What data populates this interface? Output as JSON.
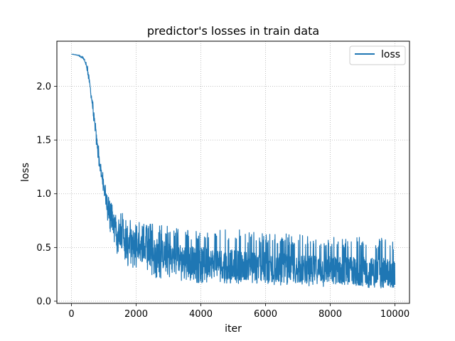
{
  "chart_data": {
    "type": "line",
    "title": "predictor's losses in train data",
    "xlabel": "iter",
    "ylabel": "loss",
    "xlim": [
      -450,
      10450
    ],
    "ylim": [
      -0.02,
      2.42
    ],
    "xticks": [
      0,
      2000,
      4000,
      6000,
      8000,
      10000
    ],
    "xtick_labels": [
      "0",
      "2000",
      "4000",
      "6000",
      "8000",
      "10000"
    ],
    "yticks": [
      0.0,
      0.5,
      1.0,
      1.5,
      2.0
    ],
    "ytick_labels": [
      "0.0",
      "0.5",
      "1.0",
      "1.5",
      "2.0"
    ],
    "grid": true,
    "legend_position": "upper right",
    "color": "#1f77b4",
    "series": [
      {
        "name": "loss",
        "x": [
          0,
          200,
          400,
          500,
          600,
          700,
          800,
          900,
          1000,
          1100,
          1200,
          1400,
          1600,
          1800,
          2000,
          2500,
          3000,
          3500,
          4000,
          5000,
          6000,
          7000,
          8000,
          9000,
          10000
        ],
        "y": [
          2.3,
          2.29,
          2.25,
          2.15,
          1.95,
          1.7,
          1.45,
          1.22,
          1.05,
          0.9,
          0.78,
          0.68,
          0.6,
          0.55,
          0.52,
          0.46,
          0.42,
          0.39,
          0.37,
          0.34,
          0.32,
          0.3,
          0.29,
          0.28,
          0.27
        ],
        "band_low": [
          2.3,
          2.29,
          2.24,
          2.12,
          1.9,
          1.62,
          1.38,
          1.14,
          0.96,
          0.78,
          0.62,
          0.45,
          0.36,
          0.3,
          0.27,
          0.22,
          0.2,
          0.18,
          0.17,
          0.16,
          0.15,
          0.14,
          0.13,
          0.12,
          0.12
        ],
        "band_high": [
          2.3,
          2.3,
          2.27,
          2.19,
          2.01,
          1.78,
          1.54,
          1.32,
          1.15,
          1.02,
          0.92,
          0.88,
          0.82,
          0.78,
          0.75,
          0.72,
          0.7,
          0.67,
          0.65,
          0.67,
          0.64,
          0.62,
          0.61,
          0.6,
          0.58
        ]
      }
    ]
  }
}
